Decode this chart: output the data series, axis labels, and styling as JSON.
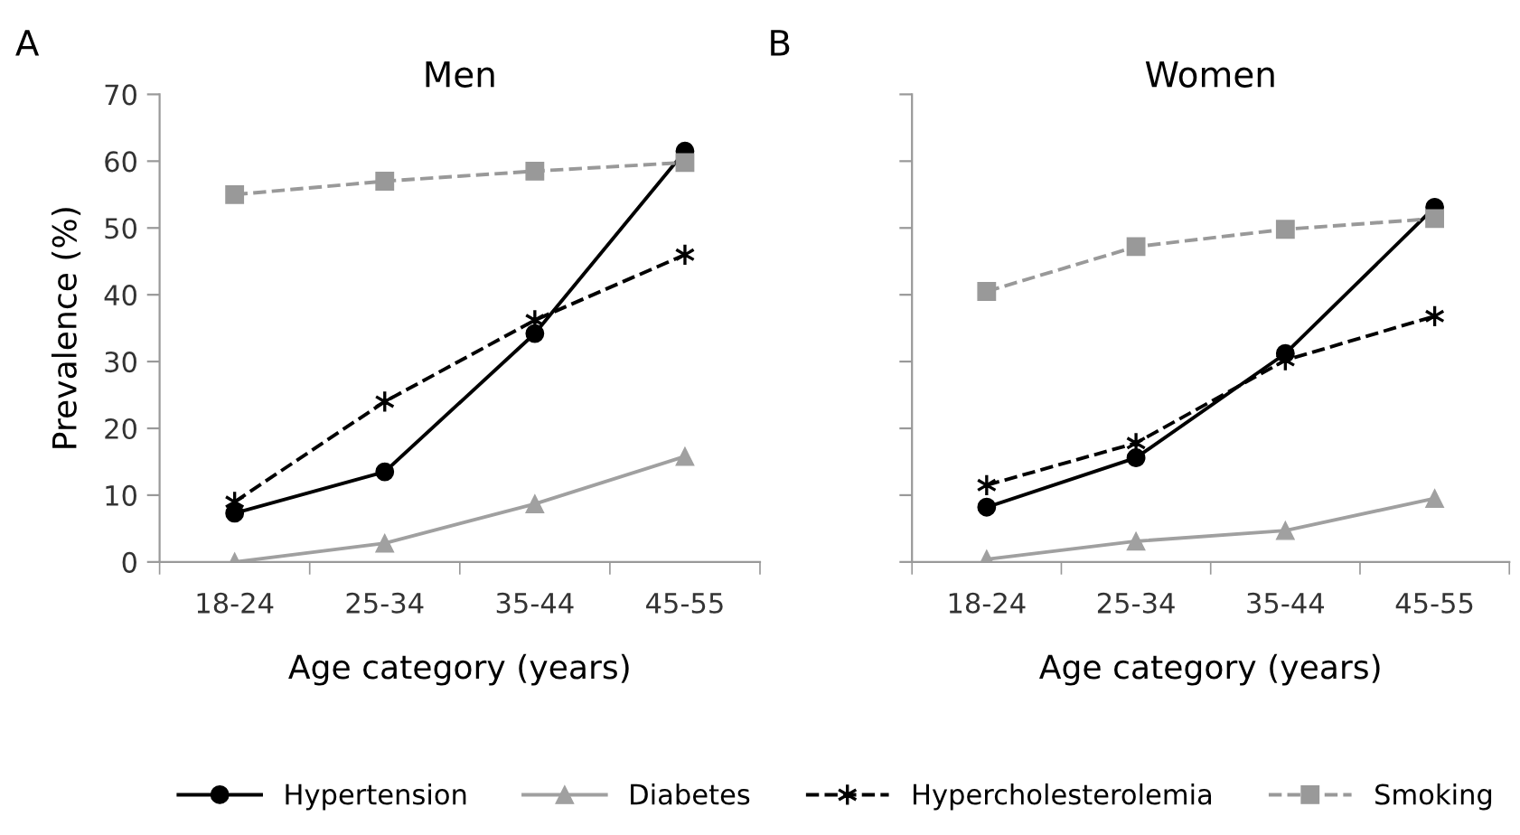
{
  "chart_data": [
    {
      "type": "line",
      "title": "Men",
      "xlabel": "Age category (years)",
      "ylabel": "Prevalence (%)",
      "annotations": [
        "A"
      ],
      "categories": [
        "18-24",
        "25-34",
        "35-44",
        "45-55"
      ],
      "ylim": [
        0,
        70
      ],
      "yticks": [
        0,
        10,
        20,
        30,
        40,
        50,
        60,
        70
      ],
      "grid": false,
      "legend": "bottom",
      "series": [
        {
          "name": "Hypertension",
          "color": "#000000",
          "marker": "circle",
          "line_style": "solid",
          "values": [
            7.3,
            13.5,
            34.2,
            61.5
          ]
        },
        {
          "name": "Diabetes",
          "color": "#a0a0a0",
          "marker": "triangle",
          "line_style": "solid",
          "values": [
            0,
            2.8,
            8.7,
            15.8
          ]
        },
        {
          "name": "Hypercholesterolemia",
          "color": "#000000",
          "marker": "cross",
          "line_style": "dashed",
          "values": [
            9,
            24,
            36.2,
            46
          ]
        },
        {
          "name": "Smoking",
          "color": "#999999",
          "marker": "square",
          "line_style": "dashed",
          "values": [
            55,
            57,
            58.5,
            59.8
          ]
        }
      ]
    },
    {
      "type": "line",
      "title": "Women",
      "xlabel": "Age category (years)",
      "annotations": [
        "B"
      ],
      "categories": [
        "18-24",
        "25-34",
        "35-44",
        "45-55"
      ],
      "ylim": [
        0,
        70
      ],
      "yticks": [
        {
          "value": 0,
          "label": null
        },
        {
          "value": 10,
          "label": null
        },
        {
          "value": 20,
          "label": null
        },
        {
          "value": 30,
          "label": null
        },
        {
          "value": 40,
          "label": null
        },
        {
          "value": 50,
          "label": null
        },
        {
          "value": 60,
          "label": null
        },
        {
          "value": 70,
          "label": null
        }
      ],
      "tick_labels": "x",
      "grid": false,
      "series": [
        {
          "color": "#000000",
          "marker": "circle",
          "line_style": "solid",
          "values": [
            8.2,
            15.6,
            31.2,
            53.1
          ]
        },
        {
          "color": "#a0a0a0",
          "marker": "triangle",
          "line_style": "solid",
          "values": [
            0.4,
            3.1,
            4.7,
            9.5
          ]
        },
        {
          "color": "#000000",
          "marker": "cross",
          "line_style": "dashed",
          "values": [
            11.5,
            17.8,
            30.2,
            36.8
          ]
        },
        {
          "color": "#999999",
          "marker": "square",
          "line_style": "dashed",
          "values": [
            40.5,
            47.2,
            49.8,
            51.4
          ]
        }
      ]
    }
  ]
}
